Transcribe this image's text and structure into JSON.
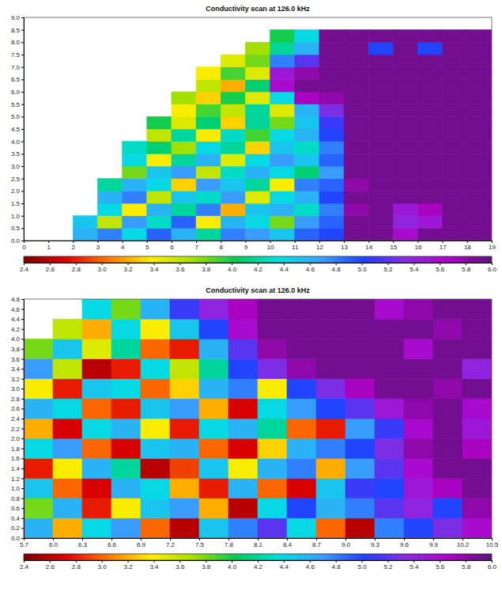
{
  "chart_data": [
    {
      "type": "heatmap",
      "title": "Conductivity scan at 126.0 kHz",
      "xlim": [
        0,
        19
      ],
      "xticks": [
        0,
        1,
        2,
        3,
        4,
        5,
        6,
        7,
        8,
        9,
        10,
        11,
        12,
        13,
        14,
        15,
        16,
        17,
        18,
        19
      ],
      "ylim": [
        0,
        9
      ],
      "yticks": [
        {
          "value": 0,
          "label": "0.0"
        },
        0.5,
        {
          "value": 1,
          "label": "1.0"
        },
        1.5,
        {
          "value": 2,
          "label": "2.0"
        },
        2.5,
        {
          "value": 3,
          "label": "3.0"
        },
        3.5,
        {
          "value": 4,
          "label": "4.0"
        },
        4.5,
        {
          "value": 5,
          "label": "5.0"
        },
        5.5,
        {
          "value": 6,
          "label": "6.0"
        },
        6.5,
        {
          "value": 7,
          "label": "7.0"
        },
        7.5,
        {
          "value": 8,
          "label": "8.0"
        },
        8.5,
        {
          "value": 9,
          "label": "9.0"
        }
      ],
      "x_bins": [
        0,
        1,
        2,
        3,
        4,
        5,
        6,
        7,
        8,
        9,
        10,
        11,
        12,
        13,
        14,
        15,
        16,
        17,
        18,
        19
      ],
      "y_bins": [
        0,
        0.5,
        1,
        1.5,
        2,
        2.5,
        3,
        3.5,
        4,
        4.5,
        5,
        5.5,
        6,
        6.5,
        7,
        7.5,
        8,
        8.5,
        9
      ],
      "z": [
        [
          null,
          null,
          4.6,
          4.8,
          4.4,
          4.9,
          4.6,
          4.2,
          4.8,
          4.7,
          4.5,
          4.9,
          5.0,
          5.9,
          5.9,
          5.6,
          5.9,
          5.9,
          5.9
        ],
        [
          null,
          null,
          4.5,
          3.6,
          4.7,
          4.3,
          4.9,
          3.4,
          4.6,
          4.4,
          3.8,
          4.7,
          4.9,
          5.9,
          5.9,
          5.4,
          5.5,
          5.9,
          5.9
        ],
        [
          null,
          null,
          null,
          4.4,
          3.4,
          4.6,
          4.2,
          4.8,
          3.2,
          4.5,
          4.6,
          4.3,
          4.8,
          5.8,
          5.9,
          5.5,
          5.7,
          5.9,
          5.9
        ],
        [
          null,
          null,
          null,
          4.6,
          4.8,
          3.6,
          4.5,
          4.3,
          4.7,
          3.5,
          4.4,
          4.6,
          5.0,
          5.9,
          5.9,
          5.9,
          5.9,
          5.9,
          5.9
        ],
        [
          null,
          null,
          null,
          4.2,
          4.6,
          4.4,
          3.3,
          4.7,
          4.5,
          4.2,
          3.4,
          4.8,
          4.9,
          5.8,
          5.9,
          5.9,
          5.9,
          5.9,
          5.9
        ],
        [
          null,
          null,
          null,
          null,
          3.8,
          4.5,
          4.7,
          3.6,
          4.3,
          4.6,
          4.4,
          4.1,
          4.7,
          5.9,
          5.9,
          5.9,
          5.9,
          5.9,
          5.9
        ],
        [
          null,
          null,
          null,
          null,
          4.4,
          3.4,
          4.2,
          4.6,
          3.5,
          4.4,
          4.7,
          4.5,
          4.9,
          5.9,
          5.9,
          5.9,
          5.9,
          5.9,
          5.9
        ],
        [
          null,
          null,
          null,
          null,
          4.3,
          4.1,
          3.7,
          4.4,
          4.2,
          3.3,
          4.5,
          4.3,
          4.8,
          5.9,
          5.9,
          5.9,
          5.9,
          5.9,
          5.9
        ],
        [
          null,
          null,
          null,
          null,
          null,
          3.6,
          4.2,
          3.4,
          4.3,
          3.9,
          4.4,
          4.6,
          5.0,
          5.9,
          5.9,
          5.9,
          5.9,
          5.9,
          5.9
        ],
        [
          null,
          null,
          null,
          null,
          null,
          4.0,
          3.5,
          4.1,
          3.3,
          4.2,
          3.8,
          4.5,
          5.1,
          5.9,
          5.9,
          5.9,
          5.9,
          5.9,
          5.9
        ],
        [
          null,
          null,
          null,
          null,
          null,
          null,
          3.4,
          3.9,
          3.6,
          4.2,
          3.5,
          4.6,
          5.3,
          5.9,
          5.9,
          5.9,
          5.9,
          5.9,
          5.9
        ],
        [
          null,
          null,
          null,
          null,
          null,
          null,
          3.7,
          3.3,
          4.0,
          3.5,
          4.4,
          5.7,
          5.8,
          5.9,
          5.9,
          5.9,
          5.9,
          5.9,
          5.9
        ],
        [
          null,
          null,
          null,
          null,
          null,
          null,
          null,
          3.6,
          3.2,
          4.1,
          5.6,
          5.9,
          5.9,
          5.9,
          5.9,
          5.9,
          5.9,
          5.9,
          5.9
        ],
        [
          null,
          null,
          null,
          null,
          null,
          null,
          null,
          3.4,
          3.9,
          3.5,
          5.5,
          5.8,
          5.9,
          5.9,
          5.9,
          5.9,
          5.9,
          5.9,
          5.9
        ],
        [
          null,
          null,
          null,
          null,
          null,
          null,
          null,
          null,
          3.5,
          3.8,
          4.8,
          5.2,
          5.9,
          5.9,
          5.9,
          5.9,
          5.9,
          5.9,
          5.9
        ],
        [
          null,
          null,
          null,
          null,
          null,
          null,
          null,
          null,
          null,
          3.7,
          4.2,
          4.6,
          5.9,
          5.9,
          5.0,
          5.9,
          5.0,
          5.9,
          5.9
        ],
        [
          null,
          null,
          null,
          null,
          null,
          null,
          null,
          null,
          null,
          null,
          4.0,
          4.4,
          5.9,
          5.9,
          5.9,
          5.9,
          5.9,
          5.9,
          5.9
        ],
        [
          null,
          null,
          null,
          null,
          null,
          null,
          null,
          null,
          null,
          null,
          null,
          null,
          null,
          null,
          null,
          null,
          null,
          null,
          null
        ]
      ],
      "colorbar": {
        "range": [
          2.4,
          6.0
        ],
        "ticks": [
          2.4,
          2.6,
          2.8,
          {
            "value": 3,
            "label": "3.0"
          },
          3.2,
          3.4,
          3.6,
          3.8,
          {
            "value": 4,
            "label": "4.0"
          },
          4.2,
          4.4,
          4.6,
          4.8,
          {
            "value": 5,
            "label": "5.0"
          },
          5.2,
          5.4,
          5.6,
          5.8,
          {
            "value": 6,
            "label": "6.0"
          }
        ]
      }
    },
    {
      "type": "heatmap",
      "title": "Conductivity scan at 126.0 kHz",
      "xlim": [
        5.7,
        10.5
      ],
      "xticks": [
        5.7,
        {
          "value": 6,
          "label": "6.0"
        },
        6.3,
        6.6,
        6.9,
        7.2,
        7.5,
        7.8,
        8.1,
        8.4,
        8.7,
        {
          "value": 9,
          "label": "9.0"
        },
        9.3,
        9.6,
        9.9,
        10.2,
        10.5
      ],
      "ylim": [
        0,
        4.8
      ],
      "yticks": [
        {
          "value": 0,
          "label": "0.0"
        },
        0.2,
        0.4,
        0.6,
        0.8,
        {
          "value": 1,
          "label": "1.0"
        },
        1.2,
        1.4,
        1.6,
        1.8,
        {
          "value": 2,
          "label": "2.0"
        },
        2.2,
        2.4,
        2.6,
        2.8,
        {
          "value": 3,
          "label": "3.0"
        },
        3.2,
        3.4,
        3.6,
        3.8,
        {
          "value": 4,
          "label": "4.0"
        },
        4.2,
        4.4,
        4.6,
        4.8
      ],
      "x_bins": [
        5.7,
        6.0,
        6.3,
        6.6,
        6.9,
        7.2,
        7.5,
        7.8,
        8.1,
        8.4,
        8.7,
        9.0,
        9.3,
        9.6,
        9.9,
        10.2,
        10.5
      ],
      "y_bins": [
        0,
        0.4,
        0.8,
        1.2,
        1.6,
        2.0,
        2.4,
        2.8,
        3.2,
        3.6,
        4.0,
        4.4,
        4.8
      ],
      "z": [
        [
          4.6,
          3.2,
          4.4,
          4.7,
          3.0,
          2.6,
          4.5,
          4.8,
          5.2,
          4.4,
          3.0,
          2.6,
          4.8,
          5.0,
          5.3,
          5.6
        ],
        [
          3.8,
          4.6,
          2.8,
          3.4,
          4.5,
          4.7,
          3.2,
          2.6,
          4.4,
          5.0,
          4.6,
          4.8,
          5.2,
          5.4,
          5.0,
          5.8
        ],
        [
          4.5,
          3.0,
          2.7,
          4.6,
          4.4,
          3.2,
          2.8,
          4.6,
          3.0,
          2.7,
          4.5,
          5.1,
          5.0,
          5.5,
          5.7,
          5.9
        ],
        [
          2.8,
          3.4,
          4.6,
          4.2,
          2.6,
          2.9,
          4.5,
          3.4,
          4.6,
          4.8,
          3.2,
          4.7,
          5.2,
          5.6,
          5.9,
          5.9
        ],
        [
          4.4,
          4.7,
          3.0,
          2.7,
          4.5,
          4.6,
          3.0,
          2.7,
          3.3,
          4.6,
          4.8,
          5.0,
          5.3,
          5.8,
          5.9,
          5.7
        ],
        [
          3.2,
          2.7,
          4.4,
          4.6,
          3.4,
          2.8,
          4.4,
          4.6,
          4.2,
          3.0,
          2.8,
          4.7,
          5.1,
          5.6,
          5.9,
          5.5
        ],
        [
          4.6,
          4.4,
          3.0,
          2.8,
          4.5,
          4.7,
          3.2,
          2.7,
          4.4,
          4.7,
          5.0,
          5.2,
          5.5,
          5.8,
          5.9,
          5.6
        ],
        [
          3.4,
          2.8,
          4.5,
          4.4,
          3.0,
          3.3,
          4.6,
          4.8,
          3.4,
          5.0,
          5.3,
          5.7,
          5.9,
          5.9,
          5.8,
          5.9
        ],
        [
          4.7,
          3.6,
          2.6,
          2.8,
          4.4,
          3.6,
          4.2,
          5.0,
          5.3,
          5.8,
          5.9,
          5.9,
          5.9,
          5.9,
          5.9,
          5.4
        ],
        [
          3.8,
          4.5,
          3.5,
          4.2,
          3.0,
          2.8,
          4.6,
          5.2,
          5.8,
          5.9,
          5.9,
          5.9,
          5.9,
          5.6,
          5.9,
          5.9
        ],
        [
          null,
          3.6,
          3.2,
          4.4,
          3.4,
          4.5,
          5.0,
          5.6,
          5.9,
          5.9,
          5.9,
          5.9,
          5.9,
          5.9,
          5.8,
          5.9
        ],
        [
          null,
          null,
          4.4,
          3.8,
          4.6,
          5.1,
          5.4,
          5.7,
          5.9,
          5.9,
          5.9,
          5.9,
          5.6,
          5.8,
          5.9,
          5.9
        ]
      ],
      "colorbar": {
        "range": [
          2.4,
          6.0
        ],
        "ticks": [
          2.4,
          2.6,
          2.8,
          {
            "value": 3,
            "label": "3.0"
          },
          3.2,
          3.4,
          3.6,
          3.8,
          {
            "value": 4,
            "label": "4.0"
          },
          4.2,
          4.4,
          4.6,
          4.8,
          {
            "value": 5,
            "label": "5.0"
          },
          5.2,
          5.4,
          5.6,
          5.8,
          {
            "value": 6,
            "label": "6.0"
          }
        ]
      }
    }
  ]
}
